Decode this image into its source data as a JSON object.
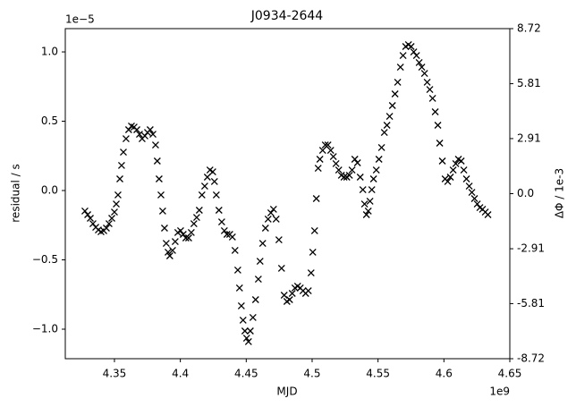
{
  "chart_data": {
    "type": "scatter",
    "title": "J0934-2644",
    "x_label": "MJD",
    "y_label": "residual / s",
    "y2_label": "ΔΦ / 1e-3",
    "x_offset_label": "1e9",
    "y_offset_label": "1e−5",
    "marker": "x",
    "color": "#000000",
    "xlim": [
      4.3127,
      4.65
    ],
    "xticks": [
      4.35,
      4.4,
      4.45,
      4.5,
      4.55,
      4.6,
      4.65
    ],
    "ylim": [
      -1.213,
      1.168
    ],
    "yticks": [
      {
        "value": -1,
        "label": "−1.0"
      },
      {
        "value": -0.5,
        "label": "−0.5"
      },
      {
        "value": 0,
        "label": "0.0"
      },
      {
        "value": 0.5,
        "label": "0.5"
      },
      {
        "value": 1,
        "label": "1.0"
      }
    ],
    "y2lim": [
      -8.72,
      8.72
    ],
    "y2ticks": [
      -8.72,
      -5.81,
      -2.91,
      {
        "value": 0,
        "label": "0.0"
      },
      2.91,
      5.81,
      8.72
    ],
    "x": [
      4.3276,
      4.3297,
      4.3317,
      4.3337,
      4.3358,
      4.3378,
      4.3398,
      4.3419,
      4.3439,
      4.3459,
      4.348,
      4.35,
      4.3514,
      4.3527,
      4.3541,
      4.3554,
      4.3568,
      4.3588,
      4.3608,
      4.3629,
      4.3649,
      4.367,
      4.369,
      4.371,
      4.3731,
      4.3751,
      4.3771,
      4.3792,
      4.3812,
      4.3825,
      4.3839,
      4.3853,
      4.3866,
      4.388,
      4.3893,
      4.3907,
      4.392,
      4.3941,
      4.3961,
      4.3981,
      4.4002,
      4.4022,
      4.4042,
      4.4063,
      4.4083,
      4.4103,
      4.4124,
      4.4144,
      4.4164,
      4.4185,
      4.4205,
      4.4225,
      4.4246,
      4.4259,
      4.4273,
      4.4293,
      4.4314,
      4.4334,
      4.4354,
      4.4375,
      4.4395,
      4.4415,
      4.4436,
      4.4449,
      4.4463,
      4.4476,
      4.449,
      4.4503,
      4.4517,
      4.4531,
      4.4551,
      4.4571,
      4.4592,
      4.4605,
      4.4625,
      4.4646,
      4.4666,
      4.4687,
      4.4707,
      4.4727,
      4.4748,
      4.4768,
      4.4788,
      4.4809,
      4.4829,
      4.4849,
      4.487,
      4.489,
      4.491,
      4.4931,
      4.4951,
      4.4971,
      4.4992,
      4.5005,
      4.5019,
      4.5032,
      4.5046,
      4.5059,
      4.508,
      4.51,
      4.512,
      4.5141,
      4.5161,
      4.5181,
      4.5202,
      4.5222,
      4.5242,
      4.5263,
      4.5283,
      4.5303,
      4.5324,
      4.5344,
      4.5365,
      4.5385,
      4.5398,
      4.5412,
      4.5426,
      4.5439,
      4.5453,
      4.5466,
      4.5487,
      4.5507,
      4.5527,
      4.5548,
      4.5568,
      4.5588,
      4.5609,
      4.5629,
      4.5649,
      4.567,
      4.569,
      4.571,
      4.5731,
      4.5751,
      4.5771,
      4.5792,
      4.5812,
      4.5832,
      4.5853,
      4.5873,
      4.5893,
      4.5914,
      4.5934,
      4.5954,
      4.5968,
      4.5988,
      4.6009,
      4.6029,
      4.6049,
      4.607,
      4.609,
      4.611,
      4.6131,
      4.6151,
      4.6171,
      4.6192,
      4.6212,
      4.6232,
      4.6253,
      4.6273,
      4.6293,
      4.6314,
      4.6334
    ],
    "values": [
      -0.148,
      -0.174,
      -0.2,
      -0.239,
      -0.265,
      -0.284,
      -0.297,
      -0.29,
      -0.271,
      -0.239,
      -0.2,
      -0.155,
      -0.097,
      -0.032,
      0.084,
      0.181,
      0.277,
      0.374,
      0.439,
      0.465,
      0.458,
      0.439,
      0.406,
      0.374,
      0.394,
      0.419,
      0.439,
      0.406,
      0.329,
      0.213,
      0.084,
      -0.032,
      -0.148,
      -0.271,
      -0.381,
      -0.445,
      -0.471,
      -0.432,
      -0.368,
      -0.303,
      -0.29,
      -0.316,
      -0.342,
      -0.342,
      -0.303,
      -0.239,
      -0.194,
      -0.142,
      -0.032,
      0.032,
      0.097,
      0.148,
      0.135,
      0.065,
      -0.032,
      -0.142,
      -0.226,
      -0.29,
      -0.316,
      -0.316,
      -0.335,
      -0.432,
      -0.574,
      -0.703,
      -0.832,
      -0.935,
      -1.013,
      -1.065,
      -1.09,
      -1.013,
      -0.916,
      -0.787,
      -0.639,
      -0.51,
      -0.381,
      -0.271,
      -0.206,
      -0.161,
      -0.135,
      -0.206,
      -0.355,
      -0.561,
      -0.755,
      -0.8,
      -0.787,
      -0.742,
      -0.703,
      -0.69,
      -0.703,
      -0.723,
      -0.742,
      -0.723,
      -0.594,
      -0.445,
      -0.29,
      -0.058,
      0.161,
      0.226,
      0.29,
      0.329,
      0.329,
      0.29,
      0.245,
      0.194,
      0.148,
      0.11,
      0.097,
      0.097,
      0.11,
      0.148,
      0.226,
      0.2,
      0.097,
      0.006,
      -0.097,
      -0.174,
      -0.148,
      -0.077,
      0.006,
      0.084,
      0.148,
      0.226,
      0.31,
      0.419,
      0.471,
      0.535,
      0.613,
      0.697,
      0.781,
      0.89,
      0.974,
      1.039,
      1.052,
      1.039,
      1,
      0.974,
      0.923,
      0.89,
      0.845,
      0.781,
      0.729,
      0.665,
      0.568,
      0.471,
      0.342,
      0.213,
      0.084,
      0.065,
      0.097,
      0.148,
      0.194,
      0.226,
      0.213,
      0.148,
      0.084,
      0.032,
      -0.013,
      -0.058,
      -0.097,
      -0.123,
      -0.135,
      -0.155,
      -0.174
    ]
  }
}
